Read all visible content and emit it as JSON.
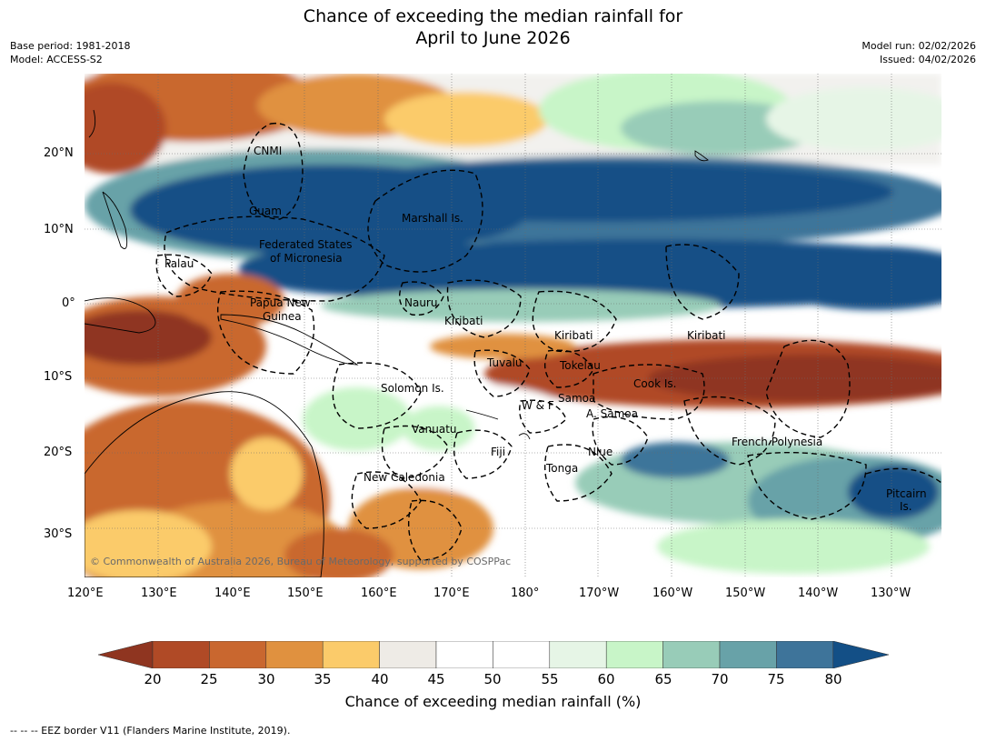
{
  "title_line1": "Chance of exceeding the median rainfall for",
  "title_line2": "April to June 2026",
  "base_period": "Base period: 1981-2018",
  "model": "Model: ACCESS-S2",
  "model_run": "Model run: 02/02/2026",
  "issued": "Issued: 04/02/2026",
  "copyright": "© Commonwealth of Australia 2026, Bureau of Meteorology, supported by COSPPac",
  "lon_ticks": [
    "120°E",
    "130°E",
    "140°E",
    "150°E",
    "160°E",
    "170°E",
    "180°",
    "170°W",
    "160°W",
    "150°W",
    "140°W",
    "130°W"
  ],
  "lat_ticks": [
    "20°N",
    "10°N",
    "0°",
    "10°S",
    "20°S",
    "30°S"
  ],
  "region_labels": [
    "CNMI",
    "Guam",
    "Marshall Is.",
    "Federated States",
    "of Micronesia",
    "Palau",
    "Nauru",
    "Papua New",
    "Guinea",
    "Kiribati",
    "Kiribati",
    "Kiribati",
    "Tuvalu",
    "Tokelau",
    "Cook Is.",
    "Solomon Is.",
    "W & F",
    "Samoa",
    "A. Samoa",
    "Vanuatu",
    "Fiji",
    "Niue",
    "French Polynesia",
    "Tonga",
    "New Caledonia",
    "Pitcairn",
    "Is."
  ],
  "colorbar": {
    "title": "Chance of exceeding median rainfall (%)",
    "ticks": [
      "20",
      "25",
      "30",
      "35",
      "40",
      "45",
      "50",
      "55",
      "60",
      "65",
      "70",
      "75",
      "80"
    ],
    "colors": [
      "#8f3520",
      "#b04a26",
      "#c9672f",
      "#e0913f",
      "#fbcb6a",
      "#eeebe6",
      "#ffffff",
      "#ffffff",
      "#e6f5e6",
      "#c8f5c8",
      "#98ccb8",
      "#68a2a8",
      "#3e749a",
      "#134f86"
    ]
  },
  "footnote": "--  --  -- EEZ border V11 (Flanders Marine Institute, 2019)."
}
